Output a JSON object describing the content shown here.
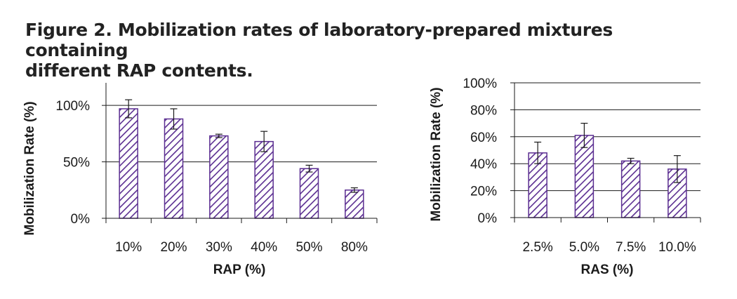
{
  "figure": {
    "title_line1": "Figure 2. Mobilization rates of laboratory-prepared mixtures containing",
    "title_line2": "different RAP contents."
  },
  "colors": {
    "bar_stroke": "#5b2e91",
    "hatch": "#5b2e91",
    "gridline": "#1a1a1a",
    "text": "#1a1a1a"
  },
  "chart_data": [
    {
      "type": "bar",
      "categories": [
        "10%",
        "20%",
        "30%",
        "40%",
        "50%",
        "80%"
      ],
      "values": [
        97,
        88,
        73,
        68,
        44,
        25
      ],
      "error": [
        8,
        9,
        1.5,
        9,
        3,
        2
      ],
      "title": "",
      "xlabel": "RAP (%)",
      "ylabel": "Mobilization Rate (%)",
      "ylim": [
        0,
        120
      ],
      "yticks": [
        0,
        50,
        100
      ],
      "ytick_labels": [
        "0%",
        "50%",
        "100%"
      ],
      "grid": true,
      "fill": "diagonal-hatch"
    },
    {
      "type": "bar",
      "categories": [
        "2.5%",
        "5.0%",
        "7.5%",
        "10.0%"
      ],
      "values": [
        48,
        61,
        42,
        36
      ],
      "error": [
        8,
        9,
        2,
        10
      ],
      "title": "",
      "xlabel": "RAS (%)",
      "ylabel": "Mobilization Rate (%)",
      "ylim": [
        0,
        100
      ],
      "yticks": [
        0,
        20,
        40,
        60,
        80,
        100
      ],
      "ytick_labels": [
        "0%",
        "20%",
        "40%",
        "60%",
        "80%",
        "100%"
      ],
      "grid": true,
      "fill": "diagonal-hatch"
    }
  ]
}
